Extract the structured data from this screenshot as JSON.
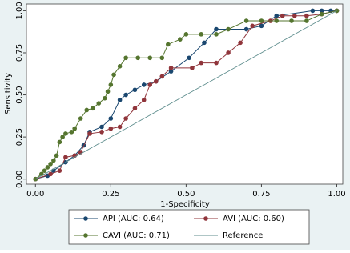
{
  "chart_data": {
    "type": "line",
    "xlabel": "1-Specificity",
    "ylabel": "Sensitivity",
    "xlim": [
      -0.03,
      1.02
    ],
    "ylim": [
      -0.03,
      1.04
    ],
    "xticks": [
      {
        "value": 0,
        "label": "0.00"
      },
      {
        "value": 0.25,
        "label": "0.25"
      },
      {
        "value": 0.5,
        "label": "0.50"
      },
      {
        "value": 0.75,
        "label": "0.75"
      },
      {
        "value": 1,
        "label": "1.00"
      }
    ],
    "yticks": [
      {
        "value": 0,
        "label": "0.00"
      },
      {
        "value": 0.25,
        "label": "0.25"
      },
      {
        "value": 0.5,
        "label": "0.50"
      },
      {
        "value": 0.75,
        "label": "0.75"
      },
      {
        "value": 1,
        "label": "1.00"
      }
    ],
    "series": [
      {
        "name": "API (AUC: 0.64)",
        "color": "#1a476f",
        "markers": true,
        "x": [
          0,
          0.04,
          0.06,
          0.1,
          0.13,
          0.16,
          0.18,
          0.22,
          0.25,
          0.28,
          0.3,
          0.33,
          0.36,
          0.4,
          0.45,
          0.51,
          0.56,
          0.6,
          0.7,
          0.75,
          0.8,
          0.92,
          0.95,
          0.98,
          1
        ],
        "values": [
          0,
          0.02,
          0.05,
          0.1,
          0.14,
          0.2,
          0.28,
          0.31,
          0.36,
          0.47,
          0.5,
          0.53,
          0.56,
          0.58,
          0.64,
          0.72,
          0.81,
          0.89,
          0.89,
          0.91,
          0.97,
          1,
          1,
          1,
          1
        ]
      },
      {
        "name": "AVI (AUC: 0.60)",
        "color": "#90353b",
        "markers": true,
        "x": [
          0,
          0.05,
          0.08,
          0.1,
          0.13,
          0.15,
          0.18,
          0.22,
          0.25,
          0.28,
          0.3,
          0.33,
          0.36,
          0.38,
          0.4,
          0.42,
          0.45,
          0.52,
          0.55,
          0.6,
          0.64,
          0.68,
          0.72,
          0.78,
          0.82,
          0.86,
          0.9,
          0.95,
          1
        ],
        "values": [
          0,
          0.03,
          0.05,
          0.13,
          0.14,
          0.16,
          0.27,
          0.28,
          0.3,
          0.31,
          0.36,
          0.42,
          0.47,
          0.56,
          0.58,
          0.61,
          0.66,
          0.66,
          0.69,
          0.69,
          0.75,
          0.81,
          0.91,
          0.94,
          0.97,
          0.97,
          0.97,
          0.98,
          1
        ]
      },
      {
        "name": "CAVI (AUC: 0.71)",
        "color": "#55752f",
        "markers": true,
        "x": [
          0,
          0.02,
          0.03,
          0.04,
          0.05,
          0.06,
          0.07,
          0.08,
          0.09,
          0.1,
          0.12,
          0.13,
          0.15,
          0.17,
          0.19,
          0.21,
          0.23,
          0.24,
          0.25,
          0.26,
          0.28,
          0.3,
          0.34,
          0.38,
          0.42,
          0.44,
          0.48,
          0.5,
          0.55,
          0.6,
          0.64,
          0.7,
          0.75,
          0.8,
          0.85,
          0.9,
          0.95,
          1
        ],
        "values": [
          0,
          0.03,
          0.05,
          0.07,
          0.09,
          0.11,
          0.14,
          0.22,
          0.25,
          0.27,
          0.28,
          0.3,
          0.36,
          0.41,
          0.42,
          0.45,
          0.48,
          0.52,
          0.56,
          0.62,
          0.67,
          0.72,
          0.72,
          0.72,
          0.72,
          0.8,
          0.83,
          0.86,
          0.86,
          0.86,
          0.89,
          0.94,
          0.94,
          0.94,
          0.94,
          0.94,
          0.98,
          1
        ]
      },
      {
        "name": "Reference",
        "color": "#5f8e8e",
        "markers": false,
        "x": [
          0,
          1
        ],
        "values": [
          0,
          1
        ]
      }
    ]
  }
}
